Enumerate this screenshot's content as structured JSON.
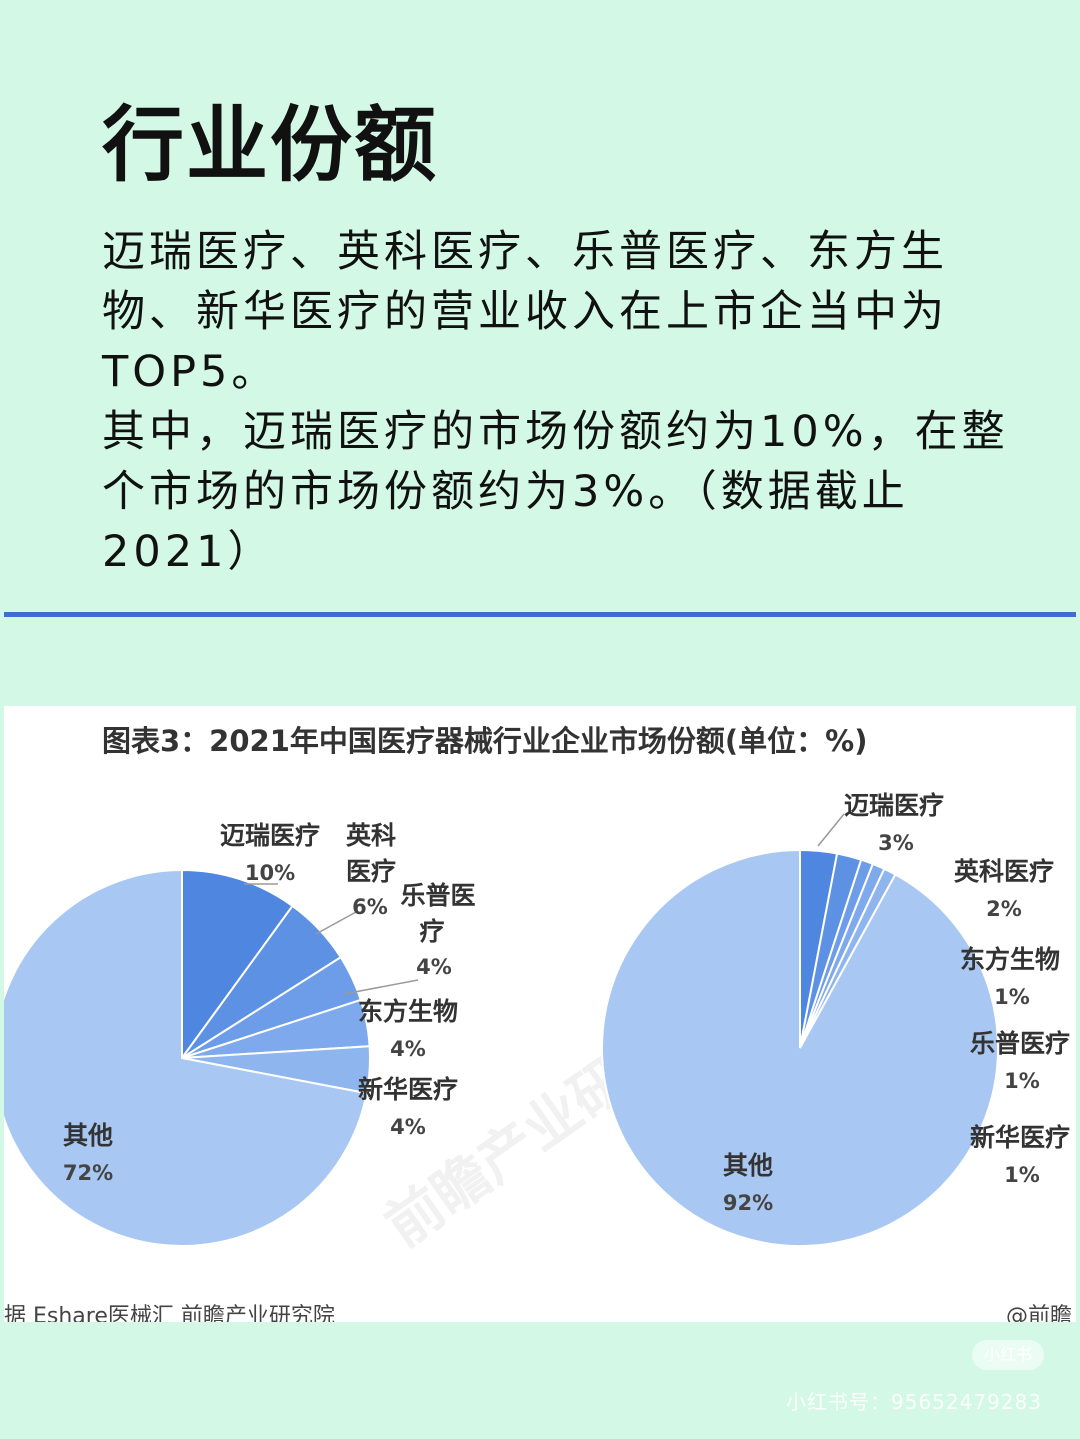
{
  "page": {
    "heading": "行业份额",
    "paragraph1": "迈瑞医疗、英科医疗、乐普医疗、东方生物、新华医疗的营业收入在上市企当中为TOP5。",
    "paragraph2": "其中，迈瑞医疗的市场份额约为10%，在整个市场的市场份额约为3%。（数据截止2021）",
    "rule_color": "#3c6fd1",
    "background_color": "#d3f9e6"
  },
  "figure": {
    "title": "图表3：2021年中国医疗器械行业企业市场份额(单位：%)",
    "source_left": "据 Eshare医械汇 前瞻产业研究院",
    "source_right": "@前瞻",
    "watermark_image": "前瞻产业研究院",
    "watermark_badge": "小红书",
    "watermark_id": "小红书号：95652479283"
  },
  "chart_data": [
    {
      "type": "pie",
      "title": "",
      "slices": [
        {
          "label": "迈瑞医疗",
          "value": 10,
          "value_label": "10%",
          "color": "#4f86df"
        },
        {
          "label": "英科医疗",
          "value": 6,
          "value_label": "6%",
          "color": "#5c91e3"
        },
        {
          "label": "乐普医疗",
          "value": 4,
          "value_label": "4%",
          "color": "#6d9de8"
        },
        {
          "label": "东方生物",
          "value": 4,
          "value_label": "4%",
          "color": "#7ea9ec"
        },
        {
          "label": "新华医疗",
          "value": 4,
          "value_label": "4%",
          "color": "#8fb5ef"
        },
        {
          "label": "其他",
          "value": 72,
          "value_label": "72%",
          "color": "#a8c7f2"
        }
      ]
    },
    {
      "type": "pie",
      "title": "",
      "slices": [
        {
          "label": "迈瑞医疗",
          "value": 3,
          "value_label": "3%",
          "color": "#4f86df"
        },
        {
          "label": "英科医疗",
          "value": 2,
          "value_label": "2%",
          "color": "#5c91e3"
        },
        {
          "label": "东方生物",
          "value": 1,
          "value_label": "1%",
          "color": "#6d9de8"
        },
        {
          "label": "乐普医疗",
          "value": 1,
          "value_label": "1%",
          "color": "#7ea9ec"
        },
        {
          "label": "新华医疗",
          "value": 1,
          "value_label": "1%",
          "color": "#8fb5ef"
        },
        {
          "label": "其他",
          "value": 92,
          "value_label": "92%",
          "color": "#a8c7f2"
        }
      ]
    }
  ]
}
